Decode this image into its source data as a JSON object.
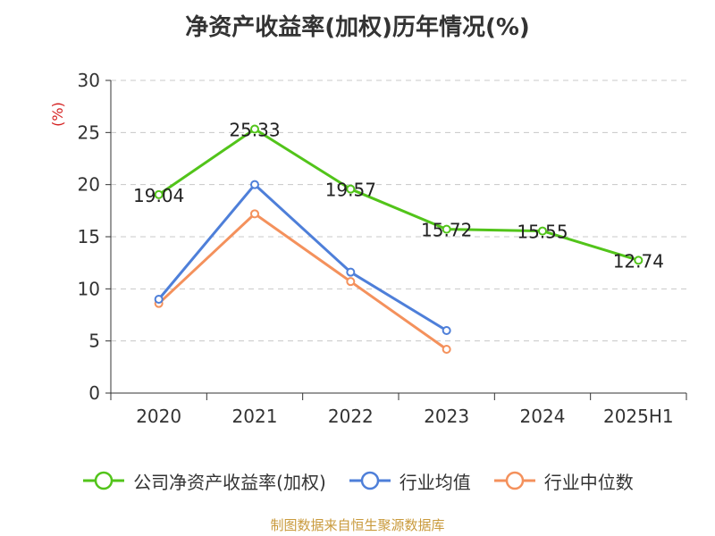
{
  "chart_data": {
    "type": "line",
    "title": "净资产收益率(加权)历年情况(%)",
    "ylabel": "(%)",
    "categories": [
      "2020",
      "2021",
      "2022",
      "2023",
      "2024",
      "2025H1"
    ],
    "ylim": [
      0,
      30
    ],
    "yticks": [
      0,
      5,
      10,
      15,
      20,
      25,
      30
    ],
    "grid": true,
    "legend_position": "bottom",
    "series": [
      {
        "name": "公司净资产收益率(加权)",
        "color": "#52c41a",
        "values": [
          19.04,
          25.33,
          19.57,
          15.72,
          15.55,
          12.74
        ],
        "labels": [
          "19.04",
          "25.33",
          "19.57",
          "15.72",
          "15.55",
          "12.74"
        ]
      },
      {
        "name": "行业均值",
        "color": "#4e7fd9",
        "values": [
          9.0,
          20.0,
          11.6,
          6.0,
          null,
          null
        ]
      },
      {
        "name": "行业中位数",
        "color": "#f4915c",
        "values": [
          8.6,
          17.2,
          10.7,
          4.2,
          null,
          null
        ]
      }
    ]
  },
  "source_note": "制图数据来自恒生聚源数据库",
  "colors": {
    "axis": "#333333",
    "grid": "#c8c8c8",
    "ylabel": "#d42020"
  }
}
